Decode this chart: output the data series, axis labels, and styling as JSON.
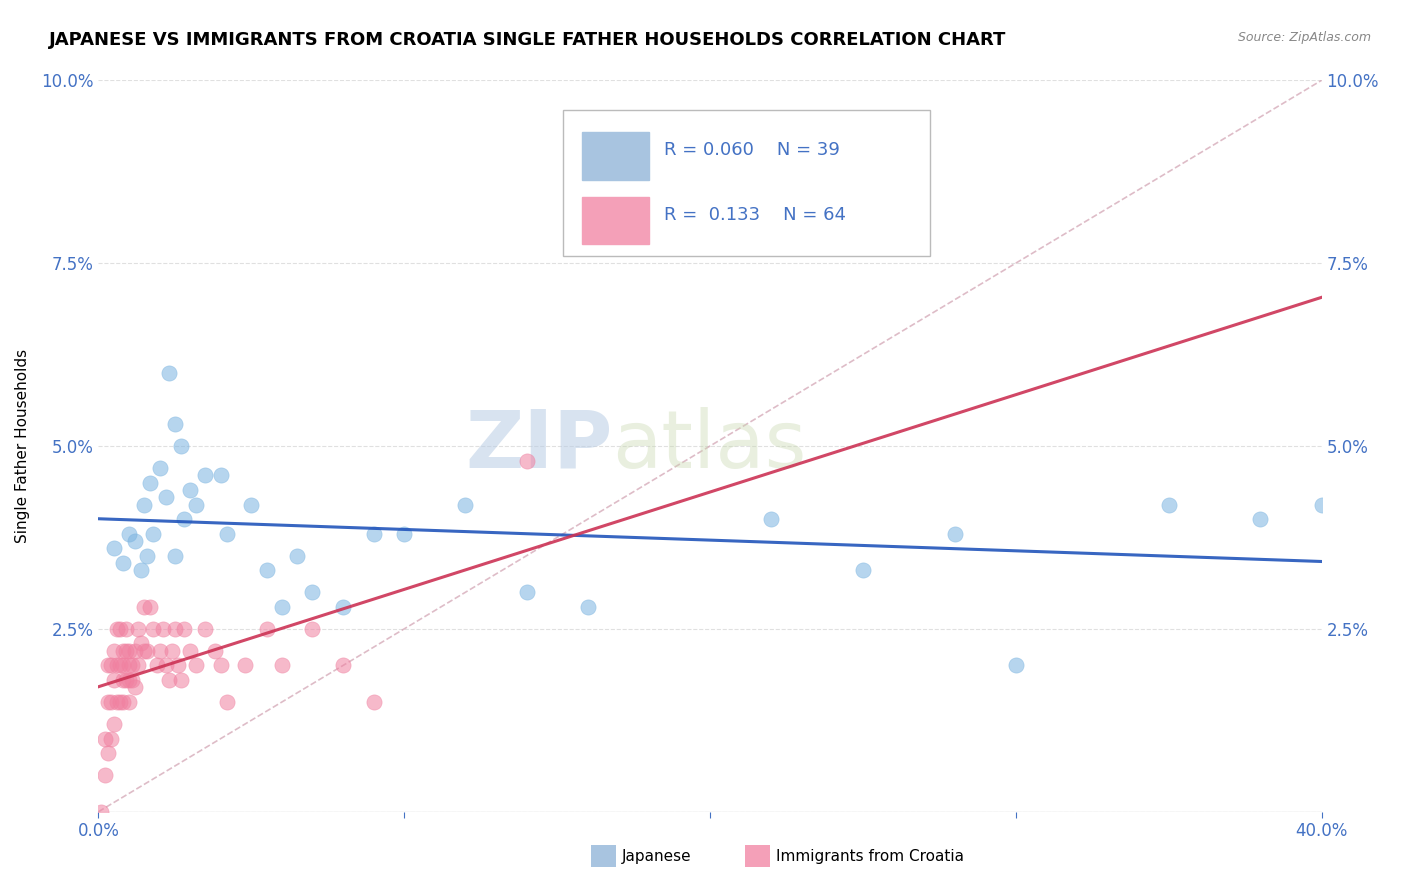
{
  "title": "JAPANESE VS IMMIGRANTS FROM CROATIA SINGLE FATHER HOUSEHOLDS CORRELATION CHART",
  "source": "Source: ZipAtlas.com",
  "ylabel": "Single Father Households",
  "xlim": [
    0.0,
    0.4
  ],
  "ylim": [
    0.0,
    0.1
  ],
  "xticks": [
    0.0,
    0.1,
    0.2,
    0.3,
    0.4
  ],
  "yticks": [
    0.0,
    0.025,
    0.05,
    0.075,
    0.1
  ],
  "xtick_labels": [
    "0.0%",
    "",
    "",
    "",
    "40.0%"
  ],
  "ytick_labels_left": [
    "",
    "2.5%",
    "5.0%",
    "7.5%",
    "10.0%"
  ],
  "ytick_labels_right": [
    "",
    "2.5%",
    "5.0%",
    "7.5%",
    "10.0%"
  ],
  "japanese_x": [
    0.005,
    0.008,
    0.01,
    0.012,
    0.014,
    0.015,
    0.016,
    0.017,
    0.018,
    0.02,
    0.022,
    0.023,
    0.025,
    0.025,
    0.027,
    0.028,
    0.03,
    0.032,
    0.035,
    0.04,
    0.042,
    0.05,
    0.055,
    0.06,
    0.065,
    0.07,
    0.08,
    0.09,
    0.1,
    0.12,
    0.14,
    0.16,
    0.22,
    0.25,
    0.28,
    0.3,
    0.35,
    0.38,
    0.4
  ],
  "japanese_y": [
    0.036,
    0.034,
    0.038,
    0.037,
    0.033,
    0.042,
    0.035,
    0.045,
    0.038,
    0.047,
    0.043,
    0.06,
    0.035,
    0.053,
    0.05,
    0.04,
    0.044,
    0.042,
    0.046,
    0.046,
    0.038,
    0.042,
    0.033,
    0.028,
    0.035,
    0.03,
    0.028,
    0.038,
    0.038,
    0.042,
    0.03,
    0.028,
    0.04,
    0.033,
    0.038,
    0.02,
    0.042,
    0.04,
    0.042
  ],
  "croatia_x": [
    0.001,
    0.002,
    0.002,
    0.003,
    0.003,
    0.003,
    0.004,
    0.004,
    0.004,
    0.005,
    0.005,
    0.005,
    0.006,
    0.006,
    0.006,
    0.007,
    0.007,
    0.007,
    0.008,
    0.008,
    0.008,
    0.008,
    0.009,
    0.009,
    0.009,
    0.01,
    0.01,
    0.01,
    0.01,
    0.011,
    0.011,
    0.012,
    0.012,
    0.013,
    0.013,
    0.014,
    0.015,
    0.015,
    0.016,
    0.017,
    0.018,
    0.019,
    0.02,
    0.021,
    0.022,
    0.023,
    0.024,
    0.025,
    0.026,
    0.027,
    0.028,
    0.03,
    0.032,
    0.035,
    0.038,
    0.04,
    0.042,
    0.048,
    0.055,
    0.06,
    0.07,
    0.08,
    0.09,
    0.14
  ],
  "croatia_y": [
    0.0,
    0.005,
    0.01,
    0.008,
    0.015,
    0.02,
    0.01,
    0.015,
    0.02,
    0.012,
    0.018,
    0.022,
    0.015,
    0.02,
    0.025,
    0.015,
    0.02,
    0.025,
    0.018,
    0.022,
    0.015,
    0.02,
    0.022,
    0.018,
    0.025,
    0.018,
    0.022,
    0.02,
    0.015,
    0.02,
    0.018,
    0.022,
    0.017,
    0.025,
    0.02,
    0.023,
    0.028,
    0.022,
    0.022,
    0.028,
    0.025,
    0.02,
    0.022,
    0.025,
    0.02,
    0.018,
    0.022,
    0.025,
    0.02,
    0.018,
    0.025,
    0.022,
    0.02,
    0.025,
    0.022,
    0.02,
    0.015,
    0.02,
    0.025,
    0.02,
    0.025,
    0.02,
    0.015,
    0.048
  ],
  "watermark_zip": "ZIP",
  "watermark_atlas": "atlas",
  "dot_size": 120,
  "dot_alpha": 0.55,
  "japanese_dot_color": "#7ab3e0",
  "croatia_dot_color": "#f080a0",
  "japanese_line_color": "#2255bb",
  "croatia_line_color": "#cc3355",
  "diag_line_color": "#d0a0b0",
  "background_color": "#ffffff",
  "grid_color": "#cccccc",
  "title_fontsize": 13,
  "axis_label_fontsize": 11,
  "tick_fontsize": 12,
  "legend_fontsize": 13,
  "tick_color": "#4472c4"
}
